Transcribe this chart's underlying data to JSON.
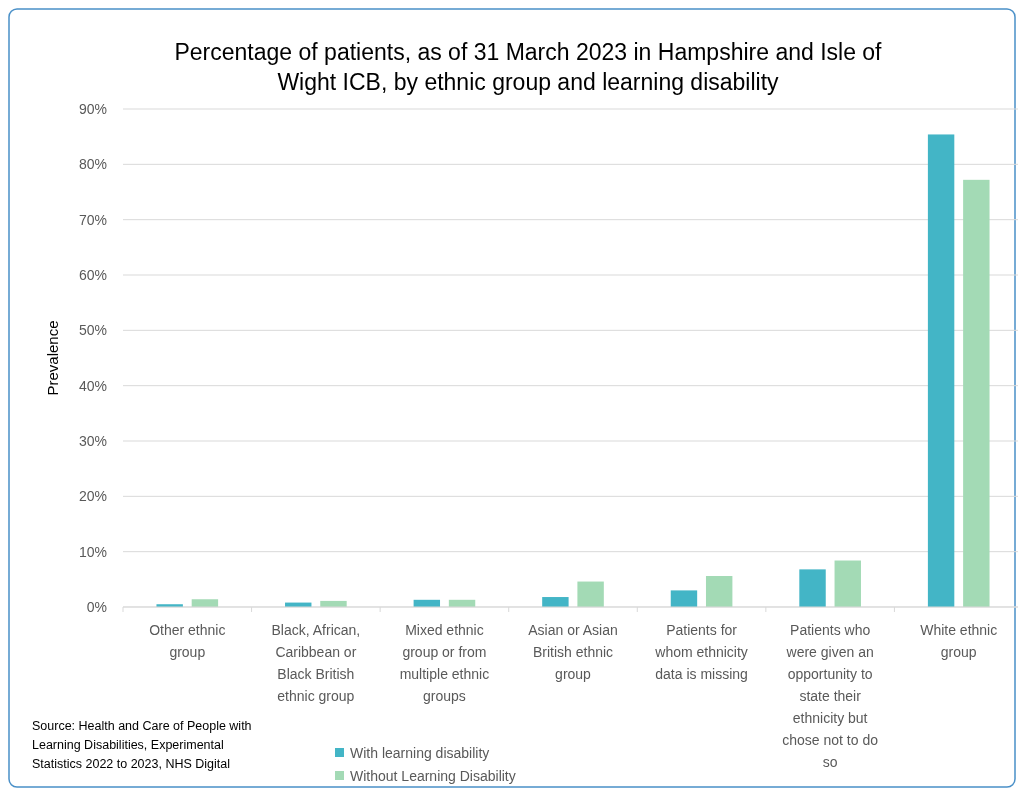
{
  "chart_data": {
    "type": "bar",
    "title": "Percentage of patients, as of 31 March 2023 in Hampshire and Isle of Wight ICB, by ethnic group and learning disability",
    "ylabel": "Prevalence",
    "categories": [
      "Other ethnic group",
      "Black, African, Caribbean or Black British ethnic group",
      "Mixed ethnic group or from multiple ethnic groups",
      "Asian or Asian British ethnic group",
      "Patients for whom ethnicity data is missing",
      "Patients who were given an opportunity to state their ethnicity but chose not to do so",
      "White ethnic group"
    ],
    "series": [
      {
        "name": "With learning disability",
        "color": "#43b5c6",
        "values": [
          0.5,
          0.8,
          1.3,
          1.8,
          3.0,
          6.8,
          85.4
        ]
      },
      {
        "name": "Without Learning Disability",
        "color": "#a3dab5",
        "values": [
          1.4,
          1.1,
          1.3,
          4.6,
          5.6,
          8.4,
          77.2
        ]
      }
    ],
    "ylim": [
      0,
      90
    ],
    "yticks": [
      {
        "value": 0,
        "label": "0%"
      },
      {
        "value": 10,
        "label": "10%"
      },
      {
        "value": 20,
        "label": "20%"
      },
      {
        "value": 30,
        "label": "30%"
      },
      {
        "value": 40,
        "label": "40%"
      },
      {
        "value": 50,
        "label": "50%"
      },
      {
        "value": 60,
        "label": "60%"
      },
      {
        "value": 70,
        "label": "70%"
      },
      {
        "value": 80,
        "label": "80%"
      },
      {
        "value": 90,
        "label": "90%"
      }
    ],
    "grid": "y",
    "legend": "bottom",
    "annotations": [
      "Source: Health and Care of People with Learning Disabilities, Experimental Statistics 2022 to 2023, NHS Digital"
    ]
  }
}
